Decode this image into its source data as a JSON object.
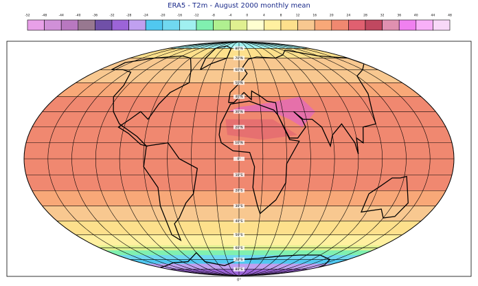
{
  "title": "ERA5 - T2m - August 2000 monthly mean",
  "colorbar": {
    "ticks": [
      -52,
      -48,
      -44,
      -40,
      -36,
      -32,
      -28,
      -24,
      -20,
      -16,
      -12,
      -8,
      -4,
      0,
      4,
      8,
      12,
      16,
      20,
      24,
      28,
      32,
      36,
      40,
      44,
      48
    ],
    "colors": [
      "#e8a0e8",
      "#d090d8",
      "#b878c0",
      "#987890",
      "#7050a8",
      "#9c64d8",
      "#c0a0f0",
      "#50c8f0",
      "#70d8f0",
      "#a0f0f0",
      "#80f0b0",
      "#b0f090",
      "#e0f090",
      "#ffffd0",
      "#fff0a0",
      "#fde08c",
      "#f8c890",
      "#f8a878",
      "#f08870",
      "#e06070",
      "#c04860",
      "#e090b0",
      "#f080f0",
      "#f8b0f8",
      "#f8d8f8"
    ]
  },
  "map": {
    "projection": "Mollweide",
    "lat_labels": [
      {
        "value": 80,
        "label": "80°N"
      },
      {
        "value": 70,
        "label": "70°N"
      },
      {
        "value": 60,
        "label": "60°N"
      },
      {
        "value": 50,
        "label": "50°N"
      },
      {
        "value": 40,
        "label": "40°N"
      },
      {
        "value": 30,
        "label": "30°N"
      },
      {
        "value": 20,
        "label": "20°N"
      },
      {
        "value": 10,
        "label": "10°N"
      },
      {
        "value": 0,
        "label": "0°"
      },
      {
        "value": -10,
        "label": "10°S"
      },
      {
        "value": -20,
        "label": "20°S"
      },
      {
        "value": -30,
        "label": "30°S"
      },
      {
        "value": -40,
        "label": "40°S"
      },
      {
        "value": -50,
        "label": "50°S"
      },
      {
        "value": -60,
        "label": "60°S"
      },
      {
        "value": -70,
        "label": "70°S"
      },
      {
        "value": -80,
        "label": "80°S"
      }
    ],
    "lon_label": "0°"
  }
}
